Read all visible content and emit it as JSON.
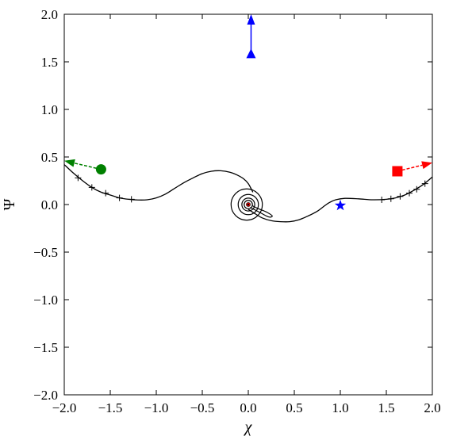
{
  "chart_data": {
    "type": "line",
    "title": "",
    "xlabel": "χ",
    "ylabel": "Ψ",
    "xlim": [
      -2.0,
      2.0
    ],
    "ylim": [
      -2.0,
      2.0
    ],
    "grid": false,
    "xticks": [
      -2.0,
      -1.5,
      -1.0,
      -0.5,
      0.0,
      0.5,
      1.0,
      1.5,
      2.0
    ],
    "yticks": [
      -2.0,
      -1.5,
      -1.0,
      -0.5,
      0.0,
      0.5,
      1.0,
      1.5,
      2.0
    ],
    "xtick_labels": [
      "−2.0",
      "−1.5",
      "−1.0",
      "−0.5",
      "0.0",
      "0.5",
      "1.0",
      "1.5",
      "2.0"
    ],
    "ytick_labels": [
      "−2.0",
      "−1.5",
      "−1.0",
      "−0.5",
      "0.0",
      "0.5",
      "1.0",
      "1.5",
      "2.0"
    ],
    "curves": [
      {
        "name": "",
        "color": "#000000",
        "points": [
          [
            -2.0,
            0.42
          ],
          [
            -1.9,
            0.33
          ],
          [
            -1.8,
            0.25
          ],
          [
            -1.7,
            0.18
          ],
          [
            -1.6,
            0.13
          ],
          [
            -1.5,
            0.1
          ],
          [
            -1.4,
            0.07
          ],
          [
            -1.3,
            0.055
          ],
          [
            -1.2,
            0.048
          ],
          [
            -1.1,
            0.05
          ],
          [
            -1.0,
            0.07
          ],
          [
            -0.9,
            0.11
          ],
          [
            -0.8,
            0.17
          ],
          [
            -0.7,
            0.23
          ],
          [
            -0.6,
            0.28
          ],
          [
            -0.5,
            0.325
          ],
          [
            -0.4,
            0.35
          ],
          [
            -0.3,
            0.355
          ],
          [
            -0.2,
            0.34
          ],
          [
            -0.12,
            0.31
          ],
          [
            -0.05,
            0.27
          ],
          [
            0.0,
            0.22
          ],
          [
            0.05,
            0.13
          ]
        ]
      },
      {
        "name": "",
        "color": "#000000",
        "points": [
          [
            0.0,
            -0.05
          ],
          [
            0.08,
            -0.1
          ],
          [
            0.15,
            -0.14
          ],
          [
            0.25,
            -0.17
          ],
          [
            0.35,
            -0.18
          ],
          [
            0.45,
            -0.18
          ],
          [
            0.55,
            -0.16
          ],
          [
            0.65,
            -0.12
          ],
          [
            0.75,
            -0.07
          ],
          [
            0.82,
            -0.02
          ],
          [
            0.88,
            0.02
          ],
          [
            0.95,
            0.05
          ],
          [
            1.05,
            0.065
          ],
          [
            1.2,
            0.06
          ],
          [
            1.35,
            0.05
          ],
          [
            1.5,
            0.055
          ],
          [
            1.6,
            0.07
          ],
          [
            1.7,
            0.1
          ],
          [
            1.8,
            0.15
          ],
          [
            1.9,
            0.21
          ],
          [
            2.0,
            0.29
          ]
        ]
      }
    ],
    "spiral": {
      "center": [
        0.0,
        0.0
      ],
      "radii": [
        0.17,
        0.11,
        0.07,
        0.045
      ],
      "tail": [
        [
          0.02,
          -0.03
        ],
        [
          0.12,
          -0.08
        ],
        [
          0.22,
          -0.13
        ],
        [
          0.26,
          -0.12
        ],
        [
          0.2,
          -0.08
        ],
        [
          0.1,
          -0.04
        ],
        [
          0.04,
          -0.01
        ]
      ]
    },
    "crosses_left": [
      [
        -1.85,
        0.28
      ],
      [
        -1.7,
        0.18
      ],
      [
        -1.55,
        0.12
      ],
      [
        -1.4,
        0.07
      ],
      [
        -1.27,
        0.055
      ]
    ],
    "crosses_right": [
      [
        1.45,
        0.05
      ],
      [
        1.55,
        0.06
      ],
      [
        1.65,
        0.085
      ],
      [
        1.75,
        0.12
      ],
      [
        1.83,
        0.16
      ],
      [
        1.92,
        0.22
      ]
    ],
    "markers": [
      {
        "name": "green-circle",
        "shape": "circle",
        "color": "#008000",
        "x": -1.6,
        "y": 0.37
      },
      {
        "name": "green-arrow-head",
        "shape": "arrow",
        "color": "#008000",
        "x": -2.0,
        "y": 0.46,
        "from": [
          -1.6,
          0.37
        ]
      },
      {
        "name": "red-square",
        "shape": "square",
        "color": "#ff0000",
        "x": 1.62,
        "y": 0.35
      },
      {
        "name": "red-arrow-head",
        "shape": "arrow",
        "color": "#ff0000",
        "x": 2.0,
        "y": 0.44,
        "from": [
          1.62,
          0.35
        ]
      },
      {
        "name": "blue-triangle",
        "shape": "triangle",
        "color": "#0000ff",
        "x": 0.03,
        "y": 1.58
      },
      {
        "name": "blue-arrow-head",
        "shape": "arrow",
        "color": "#0000ff",
        "x": 0.03,
        "y": 2.0,
        "from": [
          0.03,
          1.58
        ]
      },
      {
        "name": "blue-star",
        "shape": "star",
        "color": "#0000ff",
        "x": 1.0,
        "y": -0.01
      },
      {
        "name": "red-small-marker",
        "shape": "smallcircle",
        "color": "#ff0000",
        "x": 0.0,
        "y": 0.0
      }
    ]
  }
}
